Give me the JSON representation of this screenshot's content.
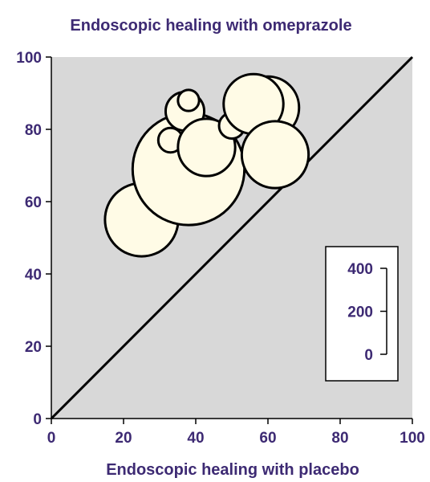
{
  "chart_data": {
    "type": "scatter",
    "title": "Endoscopic healing with omeprazole",
    "xlabel": "Endoscopic healing with placebo",
    "ylabel": "",
    "xlim": [
      0,
      100
    ],
    "ylim": [
      0,
      100
    ],
    "xticks": [
      "0",
      "20",
      "40",
      "60",
      "80",
      "100"
    ],
    "yticks": [
      "0",
      "20",
      "40",
      "60",
      "80",
      "100"
    ],
    "grid": false,
    "reference_line": {
      "from": [
        0,
        0
      ],
      "to": [
        100,
        100
      ]
    },
    "point_size_legend": {
      "placement": "bottom-right",
      "labels": [
        "400",
        "200",
        "0"
      ],
      "values": [
        400,
        200,
        0
      ]
    },
    "points": [
      {
        "x": 25,
        "y": 55,
        "size": 180
      },
      {
        "x": 38,
        "y": 69,
        "size": 420
      },
      {
        "x": 33,
        "y": 77,
        "size": 20
      },
      {
        "x": 37,
        "y": 85,
        "size": 50
      },
      {
        "x": 38,
        "y": 88,
        "size": 15
      },
      {
        "x": 43,
        "y": 75,
        "size": 110
      },
      {
        "x": 50,
        "y": 81,
        "size": 22
      },
      {
        "x": 60,
        "y": 86,
        "size": 130
      },
      {
        "x": 56,
        "y": 87,
        "size": 120
      },
      {
        "x": 62,
        "y": 73,
        "size": 150
      }
    ],
    "colors": {
      "plot_background": "#d8d8d8",
      "bubble_fill": "#fffbe6",
      "stroke": "#000000",
      "text": "#3d2a73"
    }
  }
}
